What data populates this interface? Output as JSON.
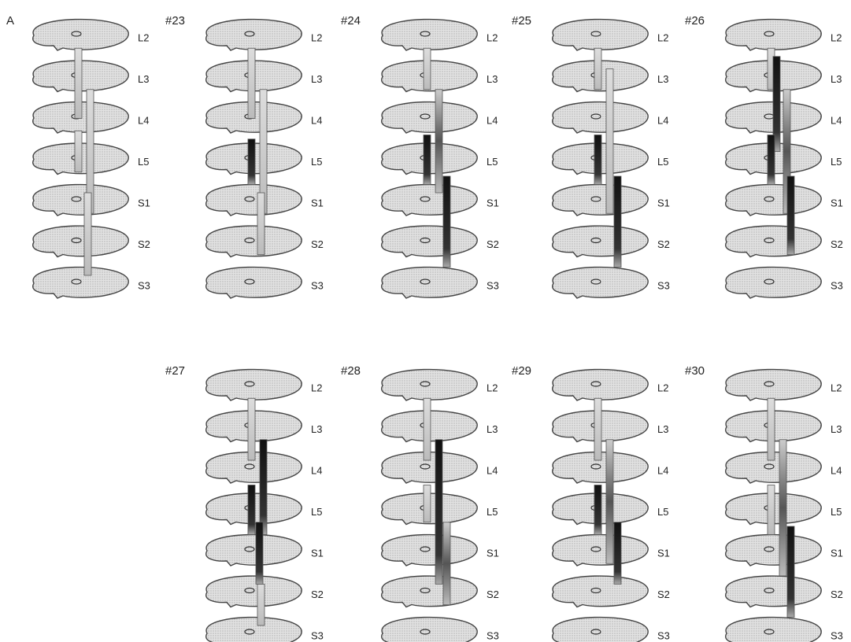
{
  "levels": [
    "L2",
    "L3",
    "L4",
    "L5",
    "S1",
    "S2",
    "S3"
  ],
  "panels": [
    {
      "label": "A"
    },
    {
      "label": "#23"
    },
    {
      "label": "#24"
    },
    {
      "label": "#25"
    },
    {
      "label": "#26"
    },
    {
      "label": "#27"
    },
    {
      "label": "#28"
    },
    {
      "label": "#29"
    },
    {
      "label": "#30"
    }
  ]
}
